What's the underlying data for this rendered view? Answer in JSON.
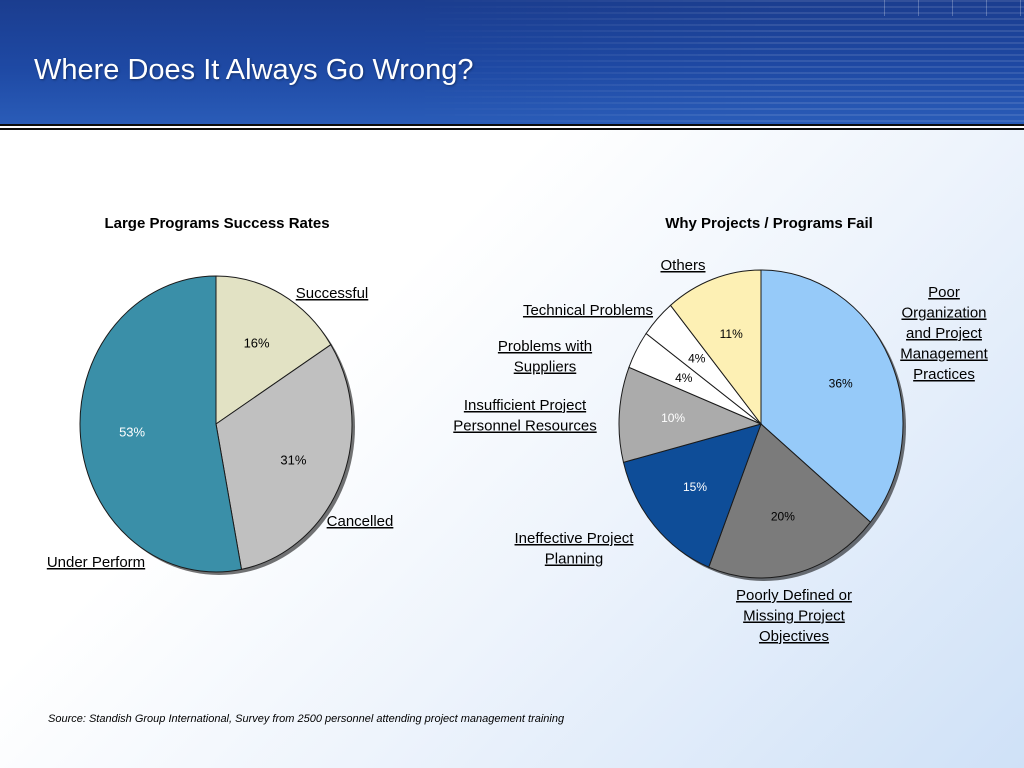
{
  "slide": {
    "title": "Where Does It Always Go Wrong?",
    "source": "Source: Standish Group International, Survey from 2500 personnel attending project management training"
  },
  "chart_data": [
    {
      "type": "pie",
      "title": "Large Programs Success Rates",
      "slices": [
        {
          "label": "Successful",
          "value": 16,
          "value_label": "16%",
          "color": "#e2e2c4"
        },
        {
          "label": "Cancelled",
          "value": 31,
          "value_label": "31%",
          "color": "#c0c0c0"
        },
        {
          "label": "Under Perform",
          "value": 53,
          "value_label": "53%",
          "color": "#3a8fa8"
        }
      ]
    },
    {
      "type": "pie",
      "title": "Why Projects / Programs Fail",
      "slices": [
        {
          "label": "Poor Organization and Project Management Practices",
          "value": 36,
          "value_label": "36%",
          "color": "#96caf9"
        },
        {
          "label": "Poorly Defined or Missing Project Objectives",
          "value": 20,
          "value_label": "20%",
          "color": "#7b7b7b"
        },
        {
          "label": "Ineffective Project Planning",
          "value": 15,
          "value_label": "15%",
          "color": "#0e4d98"
        },
        {
          "label": "Insufficient Project Personnel Resources",
          "value": 10,
          "value_label": "10%",
          "color": "#ababab"
        },
        {
          "label": "Problems with Suppliers",
          "value": 4,
          "value_label": "4%",
          "color": "#ffffff"
        },
        {
          "label": "Technical Problems",
          "value": 4,
          "value_label": "4%",
          "color": "#ffffff"
        },
        {
          "label": "Others",
          "value": 11,
          "value_label": "11%",
          "color": "#fdf0b4"
        }
      ]
    }
  ]
}
